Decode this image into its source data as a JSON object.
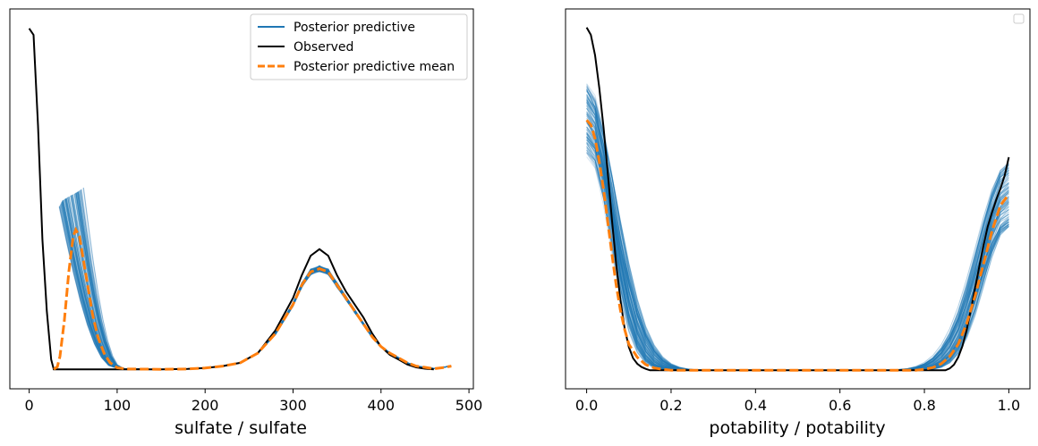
{
  "chart_data": [
    {
      "type": "line",
      "xlabel": "sulfate / sulfate",
      "ylabel": "",
      "xlim": [
        -22,
        505
      ],
      "ylim": [
        -0.0006,
        0.0111
      ],
      "xticks": [
        0,
        100,
        200,
        300,
        400,
        500
      ],
      "xtick_labels": [
        "0",
        "100",
        "200",
        "300",
        "400",
        "500"
      ],
      "yticks_visible": false,
      "grid": false,
      "legend": {
        "placement": "top-right",
        "entries": [
          {
            "label": "Posterior predictive",
            "color": "#1f77b4",
            "style": "solid"
          },
          {
            "label": "Observed",
            "color": "#000000",
            "style": "solid"
          },
          {
            "label": "Posterior predictive mean",
            "color": "#ff7f0e",
            "style": "dashed"
          }
        ]
      },
      "series": [
        {
          "name": "Observed",
          "color": "#000000",
          "points": [
            [
              0,
              0.0105
            ],
            [
              5,
              0.0103
            ],
            [
              10,
              0.0075
            ],
            [
              15,
              0.004
            ],
            [
              20,
              0.0018
            ],
            [
              25,
              0.0003
            ],
            [
              28,
              0
            ],
            [
              100,
              0
            ],
            [
              150,
              0
            ],
            [
              180,
              1e-05
            ],
            [
              200,
              4e-05
            ],
            [
              220,
              0.0001
            ],
            [
              240,
              0.0002
            ],
            [
              260,
              0.0005
            ],
            [
              280,
              0.0012
            ],
            [
              300,
              0.0022
            ],
            [
              310,
              0.0029
            ],
            [
              320,
              0.0035
            ],
            [
              330,
              0.0037
            ],
            [
              340,
              0.0035
            ],
            [
              350,
              0.0029
            ],
            [
              360,
              0.0024
            ],
            [
              370,
              0.002
            ],
            [
              380,
              0.0016
            ],
            [
              390,
              0.0011
            ],
            [
              400,
              0.0007
            ],
            [
              410,
              0.00045
            ],
            [
              420,
              0.0003
            ],
            [
              430,
              0.00015
            ],
            [
              440,
              6e-05
            ],
            [
              450,
              2e-05
            ],
            [
              460,
              0
            ]
          ]
        },
        {
          "name": "Posterior predictive mean",
          "color": "#ff7f0e",
          "points": [
            [
              28,
              0
            ],
            [
              32,
              8e-05
            ],
            [
              35,
              0.0004
            ],
            [
              40,
              0.0015
            ],
            [
              45,
              0.003
            ],
            [
              50,
              0.0041
            ],
            [
              53,
              0.0043
            ],
            [
              57,
              0.0041
            ],
            [
              62,
              0.0033
            ],
            [
              67,
              0.0025
            ],
            [
              72,
              0.0017
            ],
            [
              78,
              0.001
            ],
            [
              85,
              0.0005
            ],
            [
              92,
              0.0002
            ],
            [
              100,
              5e-05
            ],
            [
              110,
              1e-05
            ],
            [
              150,
              0
            ],
            [
              180,
              1e-05
            ],
            [
              200,
              4e-05
            ],
            [
              220,
              0.0001
            ],
            [
              240,
              0.0002
            ],
            [
              260,
              0.0005
            ],
            [
              280,
              0.0011
            ],
            [
              300,
              0.002
            ],
            [
              310,
              0.0026
            ],
            [
              320,
              0.003
            ],
            [
              330,
              0.0031
            ],
            [
              340,
              0.003
            ],
            [
              350,
              0.0026
            ],
            [
              360,
              0.0022
            ],
            [
              370,
              0.0018
            ],
            [
              380,
              0.0014
            ],
            [
              390,
              0.001
            ],
            [
              400,
              0.0007
            ],
            [
              410,
              0.0005
            ],
            [
              420,
              0.00035
            ],
            [
              430,
              0.0002
            ],
            [
              440,
              0.0001
            ],
            [
              450,
              6e-05
            ],
            [
              460,
              2e-05
            ],
            [
              470,
              5e-05
            ],
            [
              480,
              0.0001
            ]
          ]
        }
      ],
      "predictive": {
        "color": "#1f77b4",
        "draws": 100,
        "start": [
          [
            34,
            0.005
          ],
          [
            36,
            0.0051
          ],
          [
            38,
            0.0052
          ],
          [
            41,
            0.00525
          ],
          [
            44,
            0.0053
          ],
          [
            47,
            0.00535
          ],
          [
            51,
            0.0054
          ],
          [
            56,
            0.00548
          ],
          [
            62,
            0.0056
          ]
        ],
        "tail_points": [
          [
            100,
            5e-05
          ],
          [
            110,
            1e-05
          ],
          [
            150,
            0
          ],
          [
            180,
            1e-05
          ],
          [
            200,
            4e-05
          ],
          [
            220,
            0.0001
          ],
          [
            240,
            0.0002
          ],
          [
            260,
            0.0005
          ],
          [
            280,
            0.0011
          ],
          [
            300,
            0.002
          ],
          [
            310,
            0.0026
          ],
          [
            320,
            0.003
          ],
          [
            330,
            0.0031
          ],
          [
            340,
            0.003
          ],
          [
            350,
            0.0026
          ],
          [
            360,
            0.0022
          ],
          [
            370,
            0.0018
          ],
          [
            380,
            0.0014
          ],
          [
            390,
            0.001
          ],
          [
            400,
            0.0007
          ],
          [
            410,
            0.0005
          ],
          [
            420,
            0.00035
          ],
          [
            430,
            0.0002
          ],
          [
            440,
            0.0001
          ],
          [
            450,
            6e-05
          ],
          [
            460,
            3e-05
          ],
          [
            470,
            6e-05
          ],
          [
            480,
            0.0001
          ]
        ]
      }
    },
    {
      "type": "line",
      "xlabel": "potability / potability",
      "ylabel": "",
      "xlim": [
        -0.05,
        1.05
      ],
      "ylim": [
        -0.2,
        3.9
      ],
      "xticks": [
        0.0,
        0.2,
        0.4,
        0.6,
        0.8,
        1.0
      ],
      "xtick_labels": [
        "0.0",
        "0.2",
        "0.4",
        "0.6",
        "0.8",
        "1.0"
      ],
      "yticks_visible": false,
      "grid": false,
      "legend": {
        "placement": "top-right",
        "entries": []
      },
      "series": [
        {
          "name": "Observed",
          "color": "#000000",
          "points": [
            [
              0,
              3.7
            ],
            [
              0.01,
              3.62
            ],
            [
              0.02,
              3.4
            ],
            [
              0.03,
              3.05
            ],
            [
              0.04,
              2.62
            ],
            [
              0.05,
              2.13
            ],
            [
              0.06,
              1.62
            ],
            [
              0.07,
              1.15
            ],
            [
              0.08,
              0.76
            ],
            [
              0.09,
              0.45
            ],
            [
              0.1,
              0.25
            ],
            [
              0.11,
              0.13
            ],
            [
              0.12,
              0.07
            ],
            [
              0.13,
              0.035
            ],
            [
              0.14,
              0.015
            ],
            [
              0.15,
              0
            ],
            [
              0.85,
              0
            ],
            [
              0.86,
              0.02
            ],
            [
              0.87,
              0.06
            ],
            [
              0.88,
              0.14
            ],
            [
              0.89,
              0.26
            ],
            [
              0.9,
              0.43
            ],
            [
              0.91,
              0.65
            ],
            [
              0.92,
              0.89
            ],
            [
              0.93,
              1.12
            ],
            [
              0.94,
              1.35
            ],
            [
              0.95,
              1.55
            ],
            [
              0.96,
              1.7
            ],
            [
              0.97,
              1.84
            ],
            [
              0.98,
              1.96
            ],
            [
              0.99,
              2.1
            ],
            [
              1.0,
              2.3
            ]
          ]
        },
        {
          "name": "Posterior predictive mean",
          "color": "#ff7f0e",
          "points": [
            [
              0,
              2.7
            ],
            [
              0.01,
              2.65
            ],
            [
              0.02,
              2.5
            ],
            [
              0.03,
              2.25
            ],
            [
              0.04,
              1.95
            ],
            [
              0.05,
              1.6
            ],
            [
              0.06,
              1.25
            ],
            [
              0.07,
              0.92
            ],
            [
              0.08,
              0.65
            ],
            [
              0.09,
              0.44
            ],
            [
              0.1,
              0.28
            ],
            [
              0.12,
              0.14
            ],
            [
              0.14,
              0.06
            ],
            [
              0.16,
              0.025
            ],
            [
              0.18,
              0.01
            ],
            [
              0.2,
              0
            ],
            [
              0.78,
              0
            ],
            [
              0.8,
              0.01
            ],
            [
              0.82,
              0.03
            ],
            [
              0.84,
              0.07
            ],
            [
              0.86,
              0.15
            ],
            [
              0.88,
              0.28
            ],
            [
              0.9,
              0.5
            ],
            [
              0.92,
              0.8
            ],
            [
              0.94,
              1.15
            ],
            [
              0.96,
              1.5
            ],
            [
              0.98,
              1.78
            ],
            [
              1.0,
              1.9
            ]
          ]
        }
      ],
      "predictive": {
        "color": "#1f77b4",
        "draws": 100,
        "start": [
          [
            0,
            2.3
          ],
          [
            0,
            3.1
          ]
        ],
        "end": [
          [
            1.0,
            1.55
          ],
          [
            1.0,
            2.25
          ]
        ]
      }
    }
  ]
}
